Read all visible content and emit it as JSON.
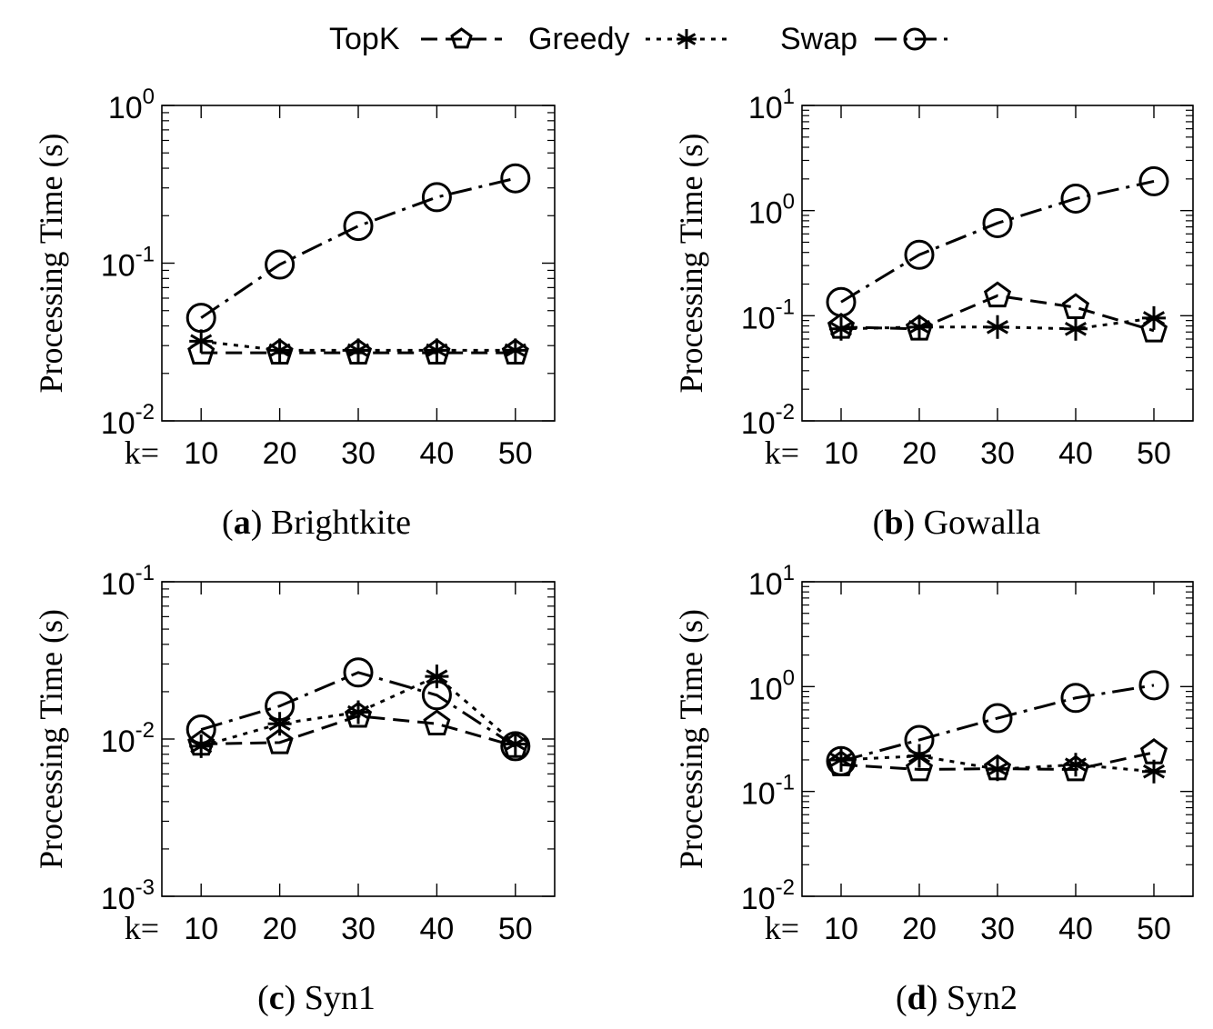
{
  "legend": {
    "items": [
      {
        "label": "TopK",
        "marker": "pentagon",
        "dash": "dash"
      },
      {
        "label": "Greedy",
        "marker": "star",
        "dash": "dot"
      },
      {
        "label": "Swap",
        "marker": "circle",
        "dash": "dashdot"
      }
    ]
  },
  "chart_data": [
    {
      "type": "line",
      "panel_letter": "a",
      "title": "Brightkite",
      "xlabel_prefix": "k=",
      "ylabel": "Processing Time (s)",
      "yscale": "log",
      "ylim": [
        0.01,
        1
      ],
      "y_ticks": [
        {
          "base": "10",
          "exp": "-2"
        },
        {
          "base": "10",
          "exp": "-1"
        },
        {
          "base": "10",
          "exp": "0"
        }
      ],
      "x": [
        10,
        20,
        30,
        40,
        50
      ],
      "series": [
        {
          "name": "TopK",
          "values": [
            0.027,
            0.027,
            0.027,
            0.027,
            0.027
          ]
        },
        {
          "name": "Greedy",
          "values": [
            0.032,
            0.028,
            0.028,
            0.028,
            0.028
          ]
        },
        {
          "name": "Swap",
          "values": [
            0.045,
            0.098,
            0.172,
            0.262,
            0.345
          ]
        }
      ]
    },
    {
      "type": "line",
      "panel_letter": "b",
      "title": "Gowalla",
      "xlabel_prefix": "k=",
      "ylabel": "Processing Time (s)",
      "yscale": "log",
      "ylim": [
        0.01,
        10
      ],
      "y_ticks": [
        {
          "base": "10",
          "exp": "-2"
        },
        {
          "base": "10",
          "exp": "-1"
        },
        {
          "base": "10",
          "exp": "0"
        },
        {
          "base": "10",
          "exp": "1"
        }
      ],
      "x": [
        10,
        20,
        30,
        40,
        50
      ],
      "series": [
        {
          "name": "TopK",
          "values": [
            0.078,
            0.075,
            0.155,
            0.12,
            0.072
          ]
        },
        {
          "name": "Greedy",
          "values": [
            0.075,
            0.078,
            0.078,
            0.075,
            0.095
          ]
        },
        {
          "name": "Swap",
          "values": [
            0.135,
            0.38,
            0.76,
            1.3,
            1.9
          ]
        }
      ]
    },
    {
      "type": "line",
      "panel_letter": "c",
      "title": "Syn1",
      "xlabel_prefix": "k=",
      "ylabel": "Processing Time (s)",
      "yscale": "log",
      "ylim": [
        0.001,
        0.1
      ],
      "y_ticks": [
        {
          "base": "10",
          "exp": "-3"
        },
        {
          "base": "10",
          "exp": "-2"
        },
        {
          "base": "10",
          "exp": "-1"
        }
      ],
      "x": [
        10,
        20,
        30,
        40,
        50
      ],
      "series": [
        {
          "name": "TopK",
          "values": [
            0.0093,
            0.0095,
            0.014,
            0.0125,
            0.009
          ]
        },
        {
          "name": "Greedy",
          "values": [
            0.009,
            0.0125,
            0.0148,
            0.025,
            0.0093
          ]
        },
        {
          "name": "Swap",
          "values": [
            0.0115,
            0.0162,
            0.0265,
            0.019,
            0.009
          ]
        }
      ]
    },
    {
      "type": "line",
      "panel_letter": "d",
      "title": "Syn2",
      "xlabel_prefix": "k=",
      "ylabel": "Processing Time (s)",
      "yscale": "log",
      "ylim": [
        0.01,
        10
      ],
      "y_ticks": [
        {
          "base": "10",
          "exp": "-2"
        },
        {
          "base": "10",
          "exp": "-1"
        },
        {
          "base": "10",
          "exp": "0"
        },
        {
          "base": "10",
          "exp": "1"
        }
      ],
      "x": [
        10,
        20,
        30,
        40,
        50
      ],
      "series": [
        {
          "name": "TopK",
          "values": [
            0.18,
            0.162,
            0.165,
            0.162,
            0.235
          ]
        },
        {
          "name": "Greedy",
          "values": [
            0.2,
            0.218,
            0.163,
            0.18,
            0.155
          ]
        },
        {
          "name": "Swap",
          "values": [
            0.195,
            0.31,
            0.5,
            0.78,
            1.03
          ]
        }
      ]
    }
  ]
}
